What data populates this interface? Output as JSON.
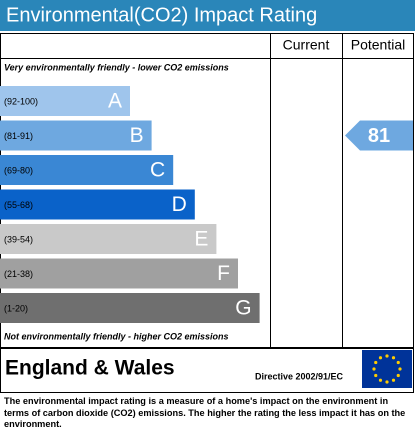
{
  "header": {
    "title": "Environmental(CO2) Impact Rating"
  },
  "table": {
    "headers": [
      "Current",
      "Potential"
    ],
    "top_note": "Very environmentally friendly - lower CO2 emissions",
    "bottom_note": "Not environmentally friendly - higher CO2 emissions",
    "bands": [
      {
        "range": "(92-100)",
        "letter": "A",
        "color": "#9fc5ec"
      },
      {
        "range": "(81-91)",
        "letter": "B",
        "color": "#6ea8e0"
      },
      {
        "range": "(69-80)",
        "letter": "C",
        "color": "#3a87d4"
      },
      {
        "range": "(55-68)",
        "letter": "D",
        "color": "#0a62c9"
      },
      {
        "range": "(39-54)",
        "letter": "E",
        "color": "#c9c9c9"
      },
      {
        "range": "(21-38)",
        "letter": "F",
        "color": "#a0a0a0"
      },
      {
        "range": "(1-20)",
        "letter": "G",
        "color": "#6f6f6f"
      }
    ],
    "potential": {
      "value": 81
    }
  },
  "footer": {
    "country": "England & Wales",
    "directive": "Directive 2002/91/EC"
  },
  "description": "The environmental impact rating is a measure of a home's impact on the environment in terms of carbon dioxide (CO2) emissions. The higher the rating the less impact it has on the environment."
}
